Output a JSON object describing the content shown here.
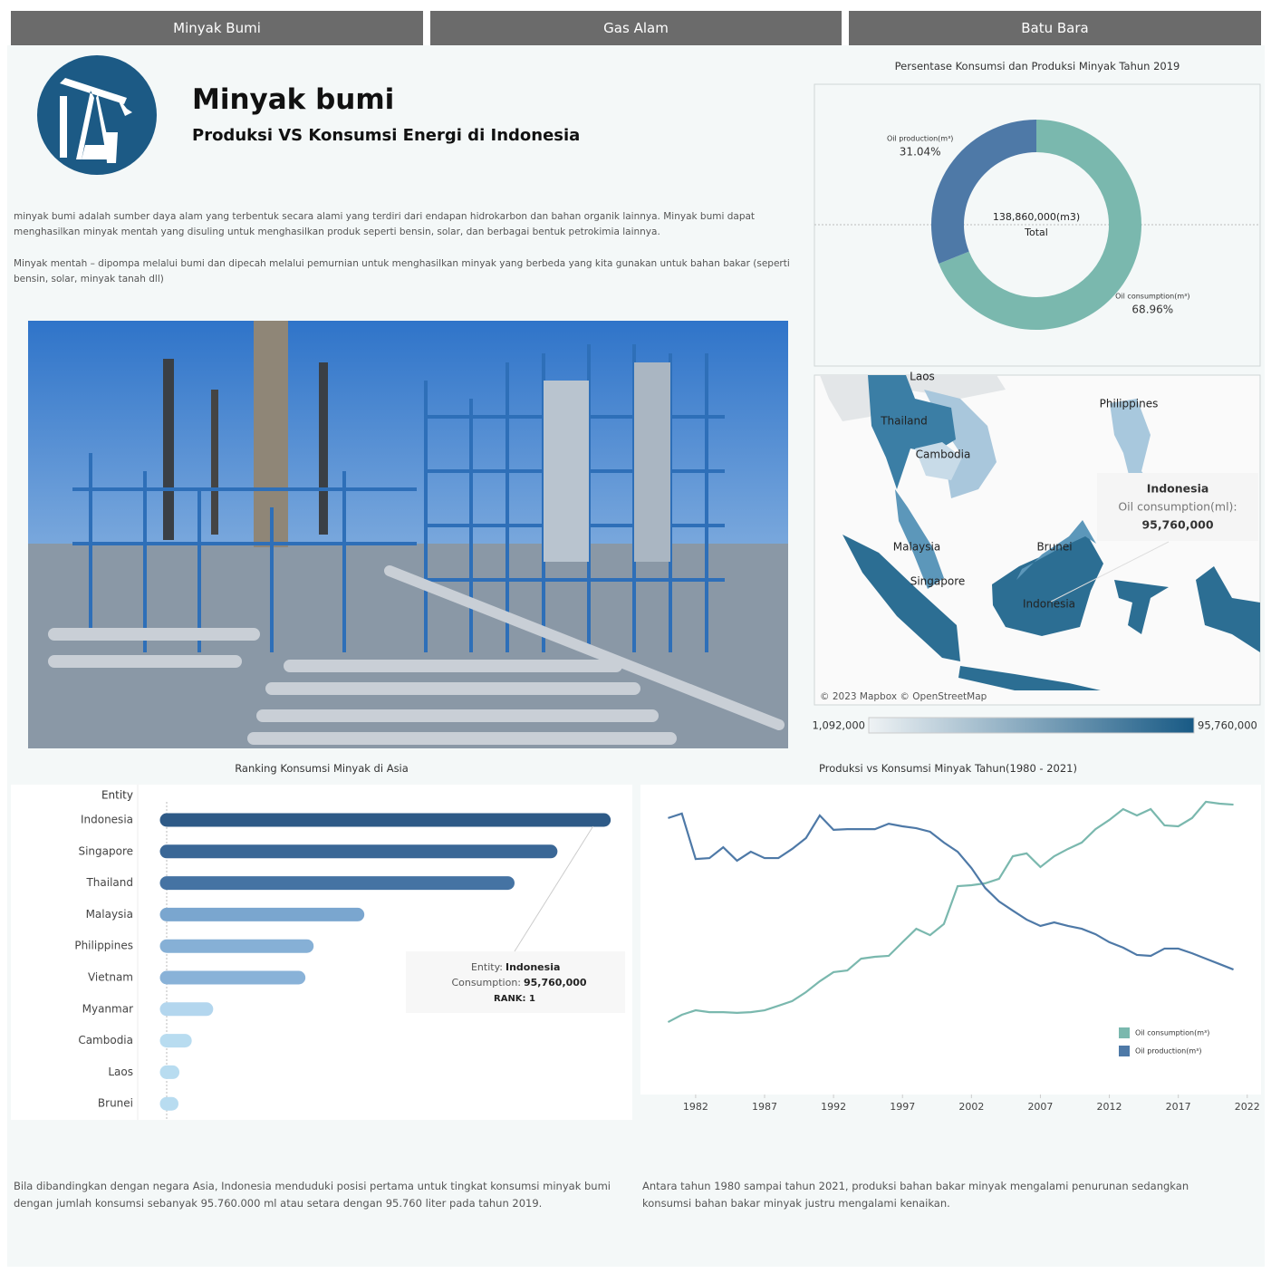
{
  "tabs": [
    "Minyak Bumi",
    "Gas Alam",
    "Batu Bara"
  ],
  "header": {
    "title": "Minyak bumi",
    "subtitle": "Produksi VS Konsumsi Energi di Indonesia"
  },
  "intro": [
    "minyak bumi adalah sumber daya alam yang terbentuk secara alami yang terdiri dari endapan hidrokarbon dan bahan organik lainnya. Minyak bumi dapat menghasilkan minyak mentah yang disuling untuk menghasilkan produk seperti bensin, solar, dan berbagai bentuk petrokimia lainnya.",
    "Minyak mentah – dipompa melalui bumi dan dipecah melalui pemurnian untuk menghasilkan minyak yang berbeda yang kita gunakan untuk bahan bakar (seperti bensin, solar, minyak tanah dll)"
  ],
  "map": {
    "labels": [
      "Laos",
      "Thailand",
      "Philippines",
      "Cambodia",
      "Malaysia",
      "Brunei",
      "Singapore",
      "Indonesia"
    ],
    "attribution": "© 2023 Mapbox © OpenStreetMap",
    "tooltip": {
      "title": "Indonesia",
      "label": "Oil consumption(ml):",
      "value": "95,760,000"
    },
    "legend": {
      "min": "1,092,000",
      "max": "95,760,000"
    }
  },
  "chart_data": [
    {
      "type": "pie",
      "title": "Persentase Konsumsi dan Produksi Minyak Tahun 2019",
      "categories": [
        "Oil consumption(m³)",
        "Oil production(m³)"
      ],
      "values": [
        68.96,
        31.04
      ],
      "value_labels": [
        "68.96%",
        "31.04%"
      ],
      "colors": [
        "#7ab8ae",
        "#4e79a7"
      ],
      "donut": true,
      "center_value": "138,860,000(m3)",
      "center_label": "Total"
    },
    {
      "type": "bar",
      "orientation": "horizontal",
      "title": "Ranking Konsumsi Minyak di Asia",
      "y_label": "Entity",
      "categories": [
        "Indonesia",
        "Singapore",
        "Thailand",
        "Malaysia",
        "Philippines",
        "Vietnam",
        "Myanmar",
        "Cambodia",
        "Laos",
        "Brunei"
      ],
      "values": [
        95760000,
        84100000,
        74700000,
        41800000,
        30700000,
        28900000,
        8700000,
        4000000,
        1300000,
        1092000
      ],
      "colors": [
        "#2e5a87",
        "#3a6796",
        "#4573a3",
        "#7aa6cf",
        "#86b0d6",
        "#89b2d8",
        "#b3d6ee",
        "#b8dcf0",
        "#b8dcf0",
        "#b8dcf0"
      ],
      "xlim": [
        0,
        100000000
      ],
      "tooltip": {
        "entity_label": "Entity:",
        "entity": "Indonesia",
        "value_label": "Consumption:",
        "value": "95,760,000",
        "rank": "RANK: 1"
      }
    },
    {
      "type": "line",
      "title": "Produksi vs Konsumsi Minyak Tahun(1980 - 2021)",
      "x": [
        1980,
        1981,
        1982,
        1983,
        1984,
        1985,
        1986,
        1987,
        1988,
        1989,
        1990,
        1991,
        1992,
        1993,
        1994,
        1995,
        1996,
        1997,
        1998,
        1999,
        2000,
        2001,
        2002,
        2003,
        2004,
        2005,
        2006,
        2007,
        2008,
        2009,
        2010,
        2011,
        2012,
        2013,
        2014,
        2015,
        2016,
        2017,
        2018,
        2019,
        2020,
        2021
      ],
      "series": [
        {
          "name": "Oil consumption(m³)",
          "color": "#7ab8ae",
          "values": [
            4.6,
            7.7,
            9.6,
            8.8,
            8.8,
            8.5,
            8.8,
            9.6,
            11.5,
            13.5,
            17.3,
            21.9,
            25.8,
            26.5,
            31.5,
            32.3,
            32.7,
            38.5,
            44.2,
            41.5,
            46.2,
            62.3,
            62.7,
            63.5,
            65.4,
            75,
            76.2,
            70.4,
            75,
            78.1,
            80.8,
            86.5,
            90.4,
            95,
            92.3,
            95,
            88.1,
            87.7,
            91.2,
            98.1,
            97.3,
            96.9
          ]
        },
        {
          "name": "Oil production(m³)",
          "color": "#4e79a7",
          "values": [
            91.2,
            93.1,
            73.8,
            74.2,
            78.8,
            73.1,
            76.9,
            74.2,
            74.2,
            78.1,
            82.7,
            92.3,
            86.2,
            86.5,
            86.5,
            86.5,
            88.8,
            87.7,
            86.9,
            85.4,
            80.8,
            76.9,
            70,
            61.5,
            55.8,
            51.9,
            48.1,
            45.4,
            46.9,
            45.4,
            44.2,
            41.9,
            38.5,
            36.2,
            33.1,
            32.7,
            35.8,
            35.8,
            33.8,
            31.5,
            29.2,
            26.9
          ]
        }
      ],
      "xlim": [
        1978,
        2023
      ],
      "xticks": [
        1982,
        1987,
        1992,
        1997,
        2002,
        2007,
        2012,
        2017,
        2022
      ],
      "ylim": [
        0,
        100
      ],
      "legend": "bottom-right"
    }
  ],
  "notes": [
    "Bila dibandingkan dengan negara Asia, Indonesia menduduki posisi pertama untuk tingkat konsumsi minyak bumi dengan jumlah konsumsi sebanyak 95.760.000 ml atau setara dengan 95.760 liter pada tahun 2019.",
    "Antara tahun 1980 sampai tahun 2021, produksi bahan bakar minyak mengalami penurunan sedangkan konsumsi bahan bakar minyak justru mengalami kenaikan."
  ]
}
